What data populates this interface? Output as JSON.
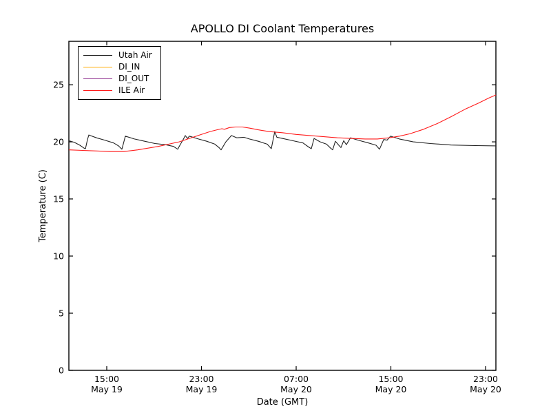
{
  "figure": {
    "background_color": "#ffffff",
    "frame_color": "#000000"
  },
  "chart_data": {
    "type": "line",
    "title": "APOLLO DI Coolant Temperatures",
    "xlabel": "Date (GMT)",
    "ylabel": "Temperature (C)",
    "grid": false,
    "legend_position": "upper left",
    "x_unit": "hours since May 19 00:00 GMT",
    "xlim": [
      11.8,
      47.87
    ],
    "ylim": [
      0,
      28.8
    ],
    "y_ticks": [
      0,
      5,
      10,
      15,
      20,
      25
    ],
    "x_ticks": [
      {
        "t": 15,
        "time": "15:00",
        "date": "May 19"
      },
      {
        "t": 23,
        "time": "23:00",
        "date": "May 19"
      },
      {
        "t": 31,
        "time": "07:00",
        "date": "May 20"
      },
      {
        "t": 39,
        "time": "15:00",
        "date": "May 20"
      },
      {
        "t": 47,
        "time": "23:00",
        "date": "May 20"
      }
    ],
    "series": [
      {
        "name": "Utah Air",
        "color": "#222222",
        "visible_in_plot": true,
        "x": [
          11.8,
          12.27,
          12.73,
          13.08,
          13.2,
          13.37,
          13.49,
          14.13,
          14.83,
          15.58,
          15.99,
          16.28,
          16.57,
          17.33,
          18.2,
          19.07,
          19.95,
          20.64,
          20.99,
          21.23,
          21.46,
          21.63,
          21.81,
          21.98,
          22.74,
          23.44,
          24.13,
          24.48,
          24.66,
          25.06,
          25.53,
          25.99,
          26.58,
          27.04,
          27.8,
          28.55,
          28.9,
          29.19,
          29.37,
          29.83,
          30.71,
          31.58,
          32.04,
          32.28,
          32.51,
          33.03,
          33.56,
          33.91,
          34.08,
          34.31,
          34.6,
          34.78,
          35.01,
          35.24,
          35.59,
          36.23,
          37.11,
          37.75,
          38.04,
          38.39,
          38.68,
          38.97,
          39.72,
          40.89,
          42.34,
          44.09,
          46.12,
          47.87
        ],
        "y": [
          20.1,
          19.95,
          19.7,
          19.45,
          19.4,
          20.2,
          20.6,
          20.35,
          20.15,
          19.9,
          19.65,
          19.35,
          20.5,
          20.25,
          20.05,
          19.85,
          19.75,
          19.6,
          19.35,
          19.8,
          20.2,
          20.55,
          20.3,
          20.5,
          20.25,
          20.05,
          19.8,
          19.5,
          19.3,
          20.0,
          20.55,
          20.35,
          20.4,
          20.25,
          20.05,
          19.8,
          19.4,
          20.9,
          20.4,
          20.3,
          20.1,
          19.9,
          19.55,
          19.4,
          20.3,
          20.0,
          19.8,
          19.45,
          19.3,
          20.05,
          19.7,
          19.5,
          20.1,
          19.75,
          20.35,
          20.15,
          19.9,
          19.7,
          19.35,
          20.2,
          20.15,
          20.5,
          20.25,
          20.0,
          19.85,
          19.72,
          19.67,
          19.65
        ]
      },
      {
        "name": "DI_IN",
        "color": "#ffaa00",
        "visible_in_plot": false,
        "x": [],
        "y": []
      },
      {
        "name": "DI_OUT",
        "color": "#882288",
        "visible_in_plot": false,
        "x": [],
        "y": []
      },
      {
        "name": "ILE Air",
        "color": "#ff1a1a",
        "visible_in_plot": true,
        "x": [
          11.8,
          12.96,
          14.13,
          15.29,
          16.45,
          17.62,
          18.49,
          19.36,
          20.24,
          21.11,
          21.98,
          22.85,
          23.73,
          24.31,
          24.72,
          24.95,
          25.36,
          25.88,
          26.46,
          27.04,
          27.8,
          28.67,
          29.83,
          31.0,
          32.16,
          33.33,
          34.49,
          35.65,
          36.82,
          37.86,
          38.85,
          39.72,
          40.6,
          41.76,
          42.92,
          44.09,
          45.25,
          46.42,
          47.29,
          47.87
        ],
        "y": [
          19.3,
          19.25,
          19.2,
          19.15,
          19.15,
          19.3,
          19.45,
          19.6,
          19.8,
          20.0,
          20.3,
          20.6,
          20.9,
          21.05,
          21.15,
          21.1,
          21.25,
          21.3,
          21.3,
          21.2,
          21.05,
          20.9,
          20.8,
          20.65,
          20.55,
          20.45,
          20.35,
          20.3,
          20.25,
          20.25,
          20.35,
          20.5,
          20.7,
          21.1,
          21.6,
          22.2,
          22.85,
          23.4,
          23.85,
          24.1
        ]
      }
    ]
  }
}
